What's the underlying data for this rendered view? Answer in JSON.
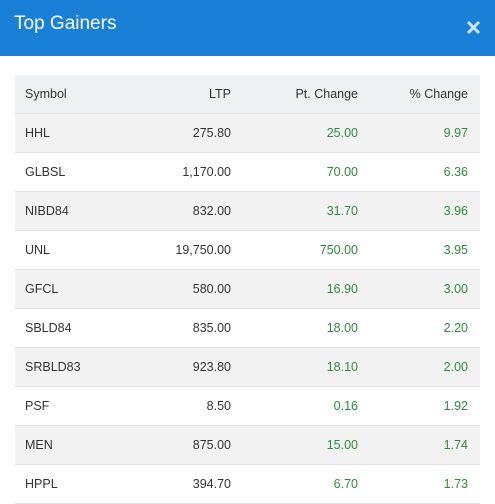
{
  "header": {
    "title": "Top Gainers"
  },
  "table": {
    "columns": [
      "Symbol",
      "LTP",
      "Pt. Change",
      "% Change"
    ],
    "rows": [
      [
        "HHL",
        "275.80",
        "25.00",
        "9.97"
      ],
      [
        "GLBSL",
        "1,170.00",
        "70.00",
        "6.36"
      ],
      [
        "NIBD84",
        "832.00",
        "31.70",
        "3.96"
      ],
      [
        "UNL",
        "19,750.00",
        "750.00",
        "3.95"
      ],
      [
        "GFCL",
        "580.00",
        "16.90",
        "3.00"
      ],
      [
        "SBLD84",
        "835.00",
        "18.00",
        "2.20"
      ],
      [
        "SRBLD83",
        "923.80",
        "18.10",
        "2.00"
      ],
      [
        "PSF",
        "8.50",
        "0.16",
        "1.92"
      ],
      [
        "MEN",
        "875.00",
        "15.00",
        "1.74"
      ],
      [
        "HPPL",
        "394.70",
        "6.70",
        "1.73"
      ]
    ]
  }
}
